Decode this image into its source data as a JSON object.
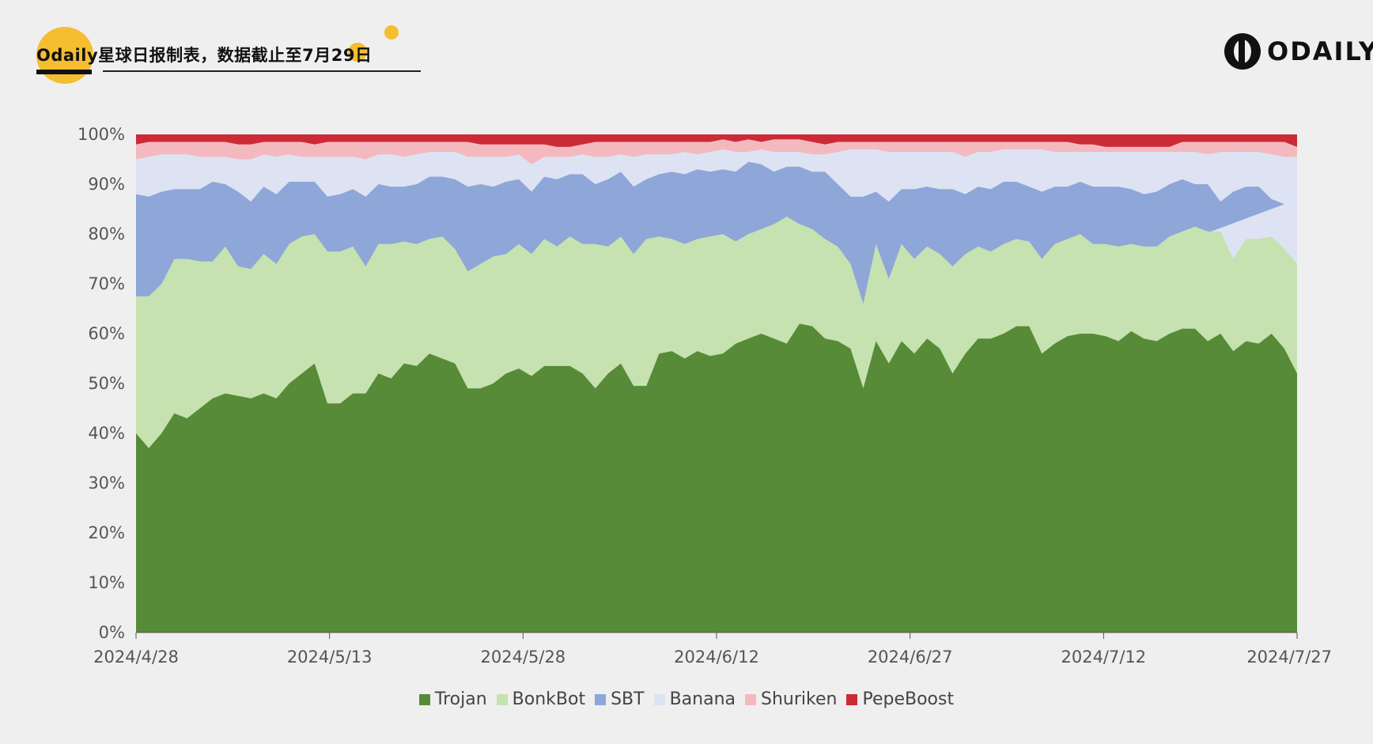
{
  "header": {
    "title": "Odaily星球日报制表，数据截止至7月29日",
    "logo_text": "ODAILY"
  },
  "colors": {
    "Trojan": "#578b37",
    "BonkBot": "#c5e2b0",
    "SBT": "#8ea6d8",
    "Banana": "#dde3f2",
    "Shuriken": "#f3b9be",
    "PepeBoost": "#cc2a36",
    "axis": "#555555",
    "tick_text": "#555555"
  },
  "chart_data": {
    "type": "area",
    "stacked": "percent",
    "x_start": "2024/4/28",
    "x_end": "2024/7/27",
    "x_tick_labels": [
      "2024/4/28",
      "2024/5/13",
      "2024/5/28",
      "2024/6/12",
      "2024/6/27",
      "2024/7/12",
      "2024/7/27"
    ],
    "y_tick_labels": [
      "0%",
      "10%",
      "20%",
      "30%",
      "40%",
      "50%",
      "60%",
      "70%",
      "80%",
      "90%",
      "100%"
    ],
    "ylim": [
      0,
      100
    ],
    "legend": [
      "Trojan",
      "BonkBot",
      "SBT",
      "Banana",
      "Shuriken",
      "PepeBoost"
    ],
    "legend_position": "bottom",
    "cumulative_top": {
      "Trojan": [
        40,
        37,
        40,
        44,
        43,
        45,
        47,
        48,
        47.5,
        47,
        48,
        47,
        50,
        52,
        54,
        46,
        46,
        48,
        48,
        52,
        51,
        54,
        53.5,
        56,
        55,
        54,
        49,
        49,
        50,
        52,
        53,
        51.5,
        53.5,
        53.5,
        53.5,
        52,
        49,
        52,
        54,
        49.5,
        49.5,
        56,
        56.5,
        55,
        56.5,
        55.5,
        56,
        58,
        59,
        60,
        59,
        58,
        62,
        61.5,
        59,
        58.5,
        57,
        49,
        58.5,
        54,
        58.5,
        56,
        59,
        57,
        52,
        56,
        59,
        59,
        60,
        61.5,
        61.5,
        56,
        58,
        59.5,
        60,
        60,
        59.5,
        58.5,
        60.5,
        59,
        58.5,
        60,
        61,
        61,
        58.5,
        60,
        56.5,
        58.5,
        58,
        60,
        57,
        52
      ],
      "BonkBot": [
        67.5,
        67.5,
        70,
        75,
        75,
        74.5,
        74.5,
        77.5,
        73.5,
        73,
        76,
        74,
        78,
        79.5,
        80,
        76.5,
        76.5,
        77.5,
        73.5,
        78,
        78,
        78.5,
        78,
        79,
        79.5,
        77,
        72.5,
        74,
        75.5,
        76,
        78,
        76,
        79,
        77.5,
        79.5,
        78,
        78,
        77.5,
        79.5,
        76,
        79,
        79.5,
        79,
        78,
        79,
        79.5,
        80,
        78.5,
        80,
        81,
        82,
        83.5,
        82,
        81,
        79,
        77.5,
        74,
        66,
        78,
        71,
        78,
        75,
        77.5,
        76,
        73.5,
        76,
        77.5,
        76.5,
        78,
        79,
        78.5,
        75,
        78,
        79,
        80,
        78,
        78,
        77.5,
        78,
        77.5,
        77.5,
        79.5,
        80.5,
        81.5,
        80.5,
        80.5,
        75,
        79,
        79,
        79.5,
        77,
        74
      ],
      "SBT": [
        88,
        87.5,
        88.5,
        89,
        89,
        89,
        90.5,
        90,
        88.5,
        86.5,
        89.5,
        88,
        90.5,
        90.5,
        90.5,
        87.5,
        88,
        89,
        87.5,
        90,
        89.5,
        89.5,
        90,
        91.5,
        91.5,
        91,
        89.5,
        90,
        89.5,
        90.5,
        91,
        88.5,
        91.5,
        91,
        92,
        92,
        90,
        91,
        92.5,
        89.5,
        91,
        92,
        92.5,
        92,
        93,
        92.5,
        93,
        92.5,
        94.5,
        94,
        92.5,
        93.5,
        93.5,
        92.5,
        92.5,
        90,
        87.5,
        87.5,
        88.5,
        86.5,
        89,
        89,
        89.5,
        89,
        89,
        88,
        89.5,
        89,
        90.5,
        90.5,
        89.5,
        88.5,
        89.5,
        89.5,
        90.5,
        89.5,
        89.5,
        89.5,
        89,
        88,
        88.5,
        90,
        91,
        90,
        90,
        86.5,
        88.5,
        89.5,
        89.5,
        87,
        86
      ],
      "Banana": [
        95,
        95.5,
        96,
        96,
        96,
        95.5,
        95.5,
        95.5,
        95,
        95,
        96,
        95.5,
        96,
        95.5,
        95.5,
        95.5,
        95.5,
        95.5,
        95,
        96,
        96,
        95.5,
        96,
        96.5,
        96.5,
        96.5,
        95.5,
        95.5,
        95.5,
        95.5,
        96,
        94,
        95.5,
        95.5,
        95.5,
        96,
        95.5,
        95.5,
        96,
        95.5,
        96,
        96,
        96,
        96.5,
        96,
        96.5,
        97,
        96.5,
        96.5,
        97,
        96.5,
        96.5,
        96.5,
        96,
        96,
        96.5,
        97,
        97,
        97,
        96.5,
        96.5,
        96.5,
        96.5,
        96.5,
        96.5,
        95.5,
        96.5,
        96.5,
        97,
        97,
        97,
        97,
        96.5,
        96.5,
        96.5,
        96.5,
        96.5,
        96.5,
        96.5,
        96.5,
        96.5,
        96.5,
        96.5,
        96.5,
        96,
        96.5,
        96.5,
        96.5,
        96.5,
        96,
        95.5,
        95.5
      ],
      "Shuriken": [
        98,
        98.5,
        98.5,
        98.5,
        98.5,
        98.5,
        98.5,
        98.5,
        98,
        98,
        98.5,
        98.5,
        98.5,
        98.5,
        98,
        98.5,
        98.5,
        98.5,
        98.5,
        98.5,
        98.5,
        98.5,
        98.5,
        98.5,
        98.5,
        98.5,
        98.5,
        98,
        98,
        98,
        98,
        98,
        98,
        97.5,
        97.5,
        98,
        98.5,
        98.5,
        98.5,
        98.5,
        98.5,
        98.5,
        98.5,
        98.5,
        98.5,
        98.5,
        99,
        98.5,
        99,
        98.5,
        99,
        99,
        99,
        98.5,
        98,
        98.5,
        98.5,
        98.5,
        98.5,
        98.5,
        98.5,
        98.5,
        98.5,
        98.5,
        98.5,
        98.5,
        98.5,
        98.5,
        98.5,
        98.5,
        98.5,
        98.5,
        98.5,
        98.5,
        98,
        98,
        97.5,
        97.5,
        97.5,
        97.5,
        97.5,
        97.5,
        98.5,
        98.5,
        98.5,
        98.5,
        98.5,
        98.5,
        98.5,
        98.5,
        98.5,
        97.5
      ]
    }
  }
}
